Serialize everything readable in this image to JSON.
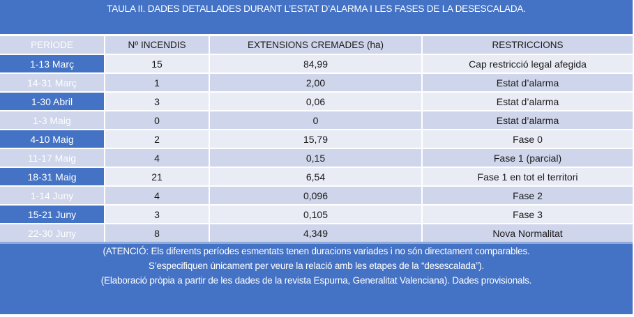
{
  "title": "TAULA II. DADES DETALLADES DURANT L’ESTAT D’ALARMA I LES FASES DE LA DESESCALADA.",
  "table": {
    "headers": [
      "PERÍODE",
      "Nº INCENDIS",
      "EXTENSIONS CREMADES (ha)",
      "RESTRICCIONS"
    ],
    "rows": [
      {
        "period": "1-13 Març",
        "fires": "15",
        "area": "84,99",
        "restriction": "Cap restricció legal afegida"
      },
      {
        "period": "14-31 Març",
        "fires": "1",
        "area": "2,00",
        "restriction": "Estat d’alarma"
      },
      {
        "period": "1-30 Abril",
        "fires": "3",
        "area": "0,06",
        "restriction": "Estat d’alarma"
      },
      {
        "period": "1-3 Maig",
        "fires": "0",
        "area": "0",
        "restriction": "Estat d’alarma"
      },
      {
        "period": "4-10 Maig",
        "fires": "2",
        "area": "15,79",
        "restriction": "Fase 0"
      },
      {
        "period": "11-17 Maig",
        "fires": "4",
        "area": "0,15",
        "restriction": "Fase 1 (parcial)"
      },
      {
        "period": "18-31 Maig",
        "fires": "21",
        "area": "6,54",
        "restriction": "Fase 1 en tot el territori"
      },
      {
        "period": "1-14 Juny",
        "fires": "4",
        "area": "0,096",
        "restriction": "Fase 2"
      },
      {
        "period": "15-21 Juny",
        "fires": "3",
        "area": "0,105",
        "restriction": "Fase 3"
      },
      {
        "period": "22-30 Juny",
        "fires": "8",
        "area": "4,349",
        "restriction": "Nova Normalitat"
      }
    ]
  },
  "footer": {
    "line1": "(ATENCIÓ: Els diferents períodes esmentats tenen duracions variades i no són directament comparables.",
    "line2": "S’especifiquen únicament per veure la relació amb les etapes de la “desescalada”).",
    "line3": "(Elaboració pròpia a partir de les dades de la revista Espurna, Generalitat Valenciana). Dades provisionals."
  },
  "colors": {
    "accent_blue": "#4472c4",
    "row_light": "#e9ebf5",
    "row_dark": "#cfd5ea"
  }
}
